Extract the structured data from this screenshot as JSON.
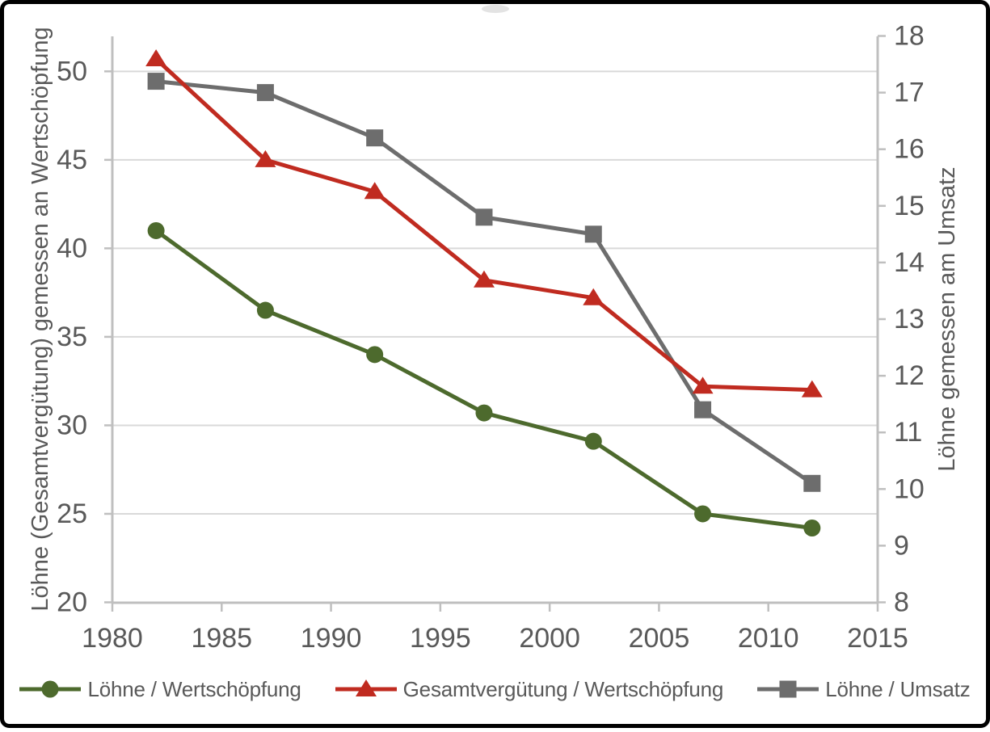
{
  "chart_data": {
    "type": "line",
    "x": [
      1982,
      1987,
      1992,
      1997,
      2002,
      2007,
      2012
    ],
    "x_axis": {
      "min": 1980,
      "max": 2015,
      "ticks": [
        1980,
        1985,
        1990,
        1995,
        2000,
        2005,
        2010,
        2015
      ]
    },
    "left_axis": {
      "title": "Löhne (Gesamtvergütung) gemessen an Wertschöpfung",
      "min": 20,
      "max": 52,
      "ticks": [
        20,
        25,
        30,
        35,
        40,
        45,
        50
      ]
    },
    "right_axis": {
      "title": "Löhne gemessen am Umsatz",
      "min": 8,
      "max": 18,
      "ticks": [
        8,
        9,
        10,
        11,
        12,
        13,
        14,
        15,
        16,
        17,
        18
      ]
    },
    "grid": true,
    "legend_position": "bottom",
    "series": [
      {
        "name": "Löhne / Wertschöpfung",
        "axis": "left",
        "marker": "circle",
        "color": "#4d6a2d",
        "values": [
          41.0,
          36.5,
          34.0,
          30.7,
          29.1,
          25.0,
          24.2
        ]
      },
      {
        "name": "Gesamtvergütung / Wertschöpfung",
        "axis": "left",
        "marker": "triangle",
        "color": "#c02b20",
        "values": [
          50.7,
          45.0,
          43.2,
          38.2,
          37.2,
          32.2,
          32.0
        ]
      },
      {
        "name": "Löhne / Umsatz",
        "axis": "right",
        "marker": "square",
        "color": "#6d6d6d",
        "values": [
          17.2,
          17.0,
          16.2,
          14.8,
          14.5,
          11.4,
          10.1
        ]
      }
    ]
  },
  "style": {
    "text_color": "#595959",
    "grid_color": "#d9d9d9",
    "axis_color": "#bfbfbf",
    "background": "#ffffff",
    "frame_color": "#010101"
  }
}
